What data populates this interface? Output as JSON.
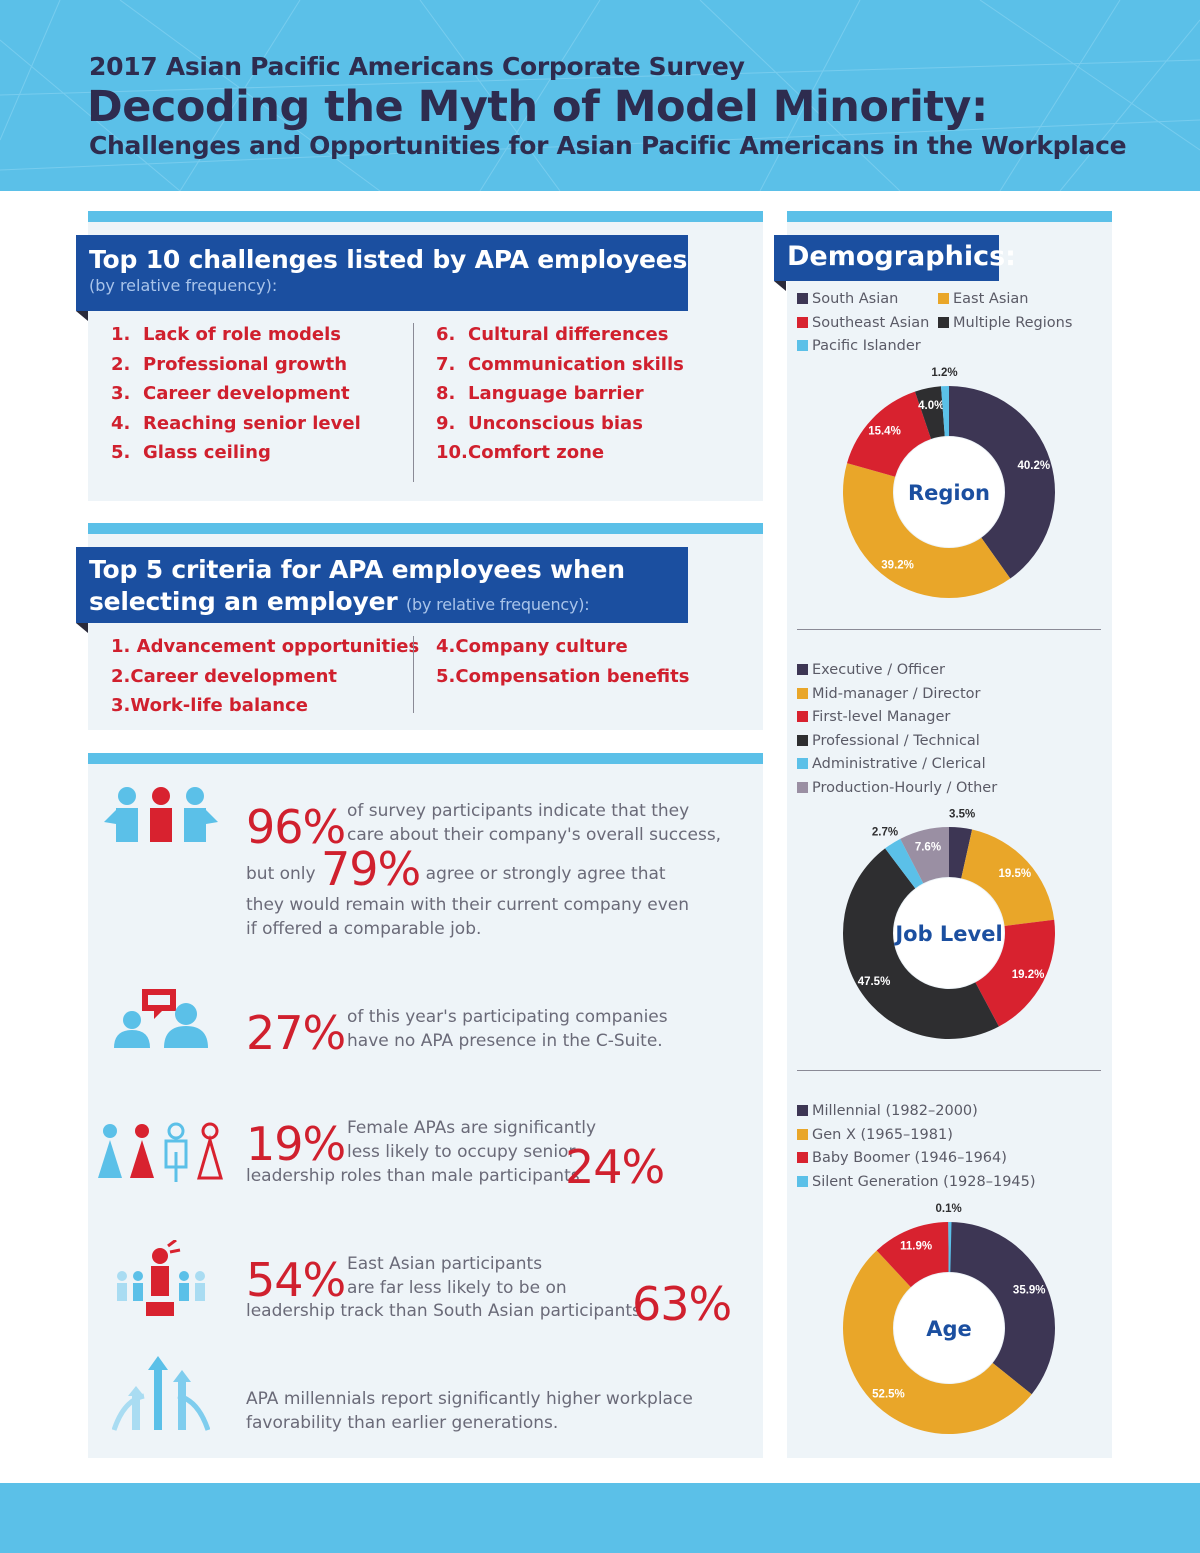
{
  "header": {
    "subtitle": "2017 Asian Pacific Americans Corporate Survey",
    "title": "Decoding the Myth of Model Minority:",
    "tagline": "Challenges and Opportunities for Asian Pacific Americans in the Workplace"
  },
  "challenges": {
    "title": "Top 10 challenges listed by APA employees",
    "note": "(by relative frequency):",
    "items": [
      {
        "num": "1.",
        "label": "Lack of role models"
      },
      {
        "num": "2.",
        "label": "Professional growth"
      },
      {
        "num": "3.",
        "label": "Career development"
      },
      {
        "num": "4.",
        "label": "Reaching senior level"
      },
      {
        "num": "5.",
        "label": "Glass ceiling"
      },
      {
        "num": "6.",
        "label": "Cultural differences"
      },
      {
        "num": "7.",
        "label": "Communication skills"
      },
      {
        "num": "8.",
        "label": "Language barrier"
      },
      {
        "num": "9.",
        "label": "Unconscious bias"
      },
      {
        "num": "10.",
        "label": "Comfort zone"
      }
    ]
  },
  "criteria": {
    "title_line1": "Top 5 criteria for APA employees when",
    "title_line2": "selecting an employer",
    "note": "(by relative frequency):",
    "items": [
      {
        "num": "1.",
        "label": "Advancement opportunities"
      },
      {
        "num": "2.",
        "label": "Career development"
      },
      {
        "num": "3.",
        "label": "Work-life balance"
      },
      {
        "num": "4.",
        "label": "Company culture"
      },
      {
        "num": "5.",
        "label": "Compensation benefits"
      }
    ]
  },
  "stats": {
    "s1": {
      "big": "96%",
      "text1": "of survey participants indicate that they",
      "text2": "care about their company's overall success,",
      "text3a": "but only",
      "big2": "79%",
      "text3b": "agree or strongly agree that",
      "text4": "they would remain with their current company even",
      "text5": "if offered a comparable job."
    },
    "s2": {
      "big": "27%",
      "text1": "of this year's participating companies",
      "text2": "have no APA presence in the C-Suite."
    },
    "s3": {
      "big": "19%",
      "text1": "Female APAs are significantly",
      "text2": "less likely to occupy senior",
      "text3": "leadership roles than male participants",
      "big2": "24%"
    },
    "s4": {
      "big": "54%",
      "text1": "East Asian participants",
      "text2": "are far less likely to be on",
      "text3": "leadership track than South Asian participants",
      "big2": "63%"
    },
    "s5": {
      "text1": "APA millennials report significantly higher workplace",
      "text2": "favorability than earlier generations."
    }
  },
  "demographics": {
    "title": "Demographics:"
  },
  "colors": {
    "navy_purple": "#3d3654",
    "gold": "#e9a629",
    "red": "#d8222f",
    "black": "#2e2e30",
    "sky": "#5bc0e8",
    "mauve": "#9a8fa3",
    "banner_blue": "#1b4fa0",
    "accent_red": "#d0202e"
  },
  "chart_data": [
    {
      "type": "pie",
      "title": "Region",
      "categories": [
        "South Asian",
        "East Asian",
        "Southeast Asian",
        "Multiple Regions",
        "Pacific Islander"
      ],
      "values": [
        40.2,
        39.2,
        15.4,
        4.0,
        1.2
      ],
      "labels": [
        "40.2%",
        "39.2%",
        "15.4%",
        "4.0%",
        "1.2%"
      ],
      "colors": [
        "#3d3654",
        "#e9a629",
        "#d8222f",
        "#2e2e30",
        "#5bc0e8"
      ],
      "legend": [
        "South Asian",
        "East Asian",
        "Southeast Asian",
        "Multiple Regions",
        "Pacific Islander"
      ]
    },
    {
      "type": "pie",
      "title": "Job Level",
      "categories": [
        "Executive / Officer",
        "Mid-manager / Director",
        "First-level Manager",
        "Professional / Technical",
        "Administrative / Clerical",
        "Production-Hourly / Other"
      ],
      "values": [
        3.5,
        19.5,
        19.2,
        47.5,
        2.7,
        7.6
      ],
      "labels": [
        "3.5%",
        "19.5%",
        "19.2%",
        "47.5%",
        "2.7%",
        "7.6%"
      ],
      "colors": [
        "#3d3654",
        "#e9a629",
        "#d8222f",
        "#2e2e30",
        "#5bc0e8",
        "#9a8fa3"
      ],
      "legend": [
        "Executive / Officer",
        "Mid-manager / Director",
        "First-level Manager",
        "Professional / Technical",
        "Administrative / Clerical",
        "Production-Hourly / Other"
      ]
    },
    {
      "type": "pie",
      "title": "Age",
      "categories": [
        "Millennial (1982–2000)",
        "Gen X (1965–1981)",
        "Baby Boomer (1946–1964)",
        "Silent Generation (1928–1945)"
      ],
      "values": [
        35.9,
        52.5,
        11.9,
        0.1
      ],
      "labels": [
        "35.9%",
        "52.5%",
        "11.9%",
        "0.1%"
      ],
      "colors": [
        "#3d3654",
        "#e9a629",
        "#d8222f",
        "#5bc0e8"
      ],
      "legend": [
        "Millennial (1982–2000)",
        "Gen X (1965–1981)",
        "Baby Boomer (1946–1964)",
        "Silent Generation (1928–1945)"
      ]
    }
  ]
}
